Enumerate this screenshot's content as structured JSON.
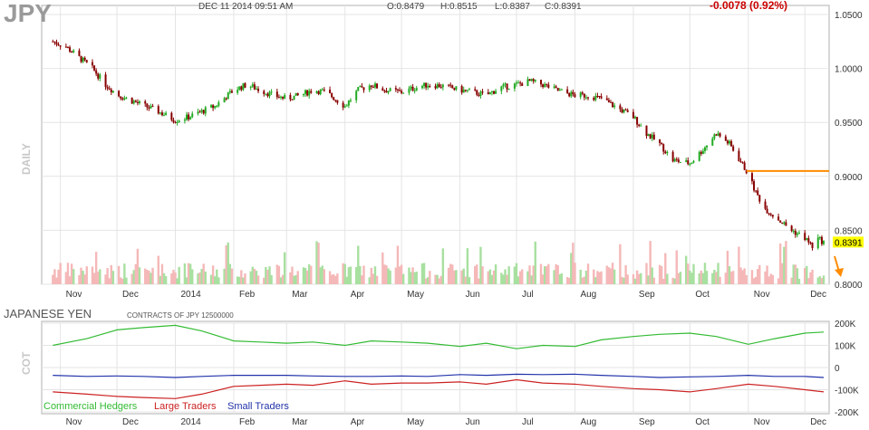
{
  "header": {
    "symbol": "JPY",
    "datetime": "DEC 11 2014 09:51 AM",
    "open": "O:0.8479",
    "high": "H:0.8515",
    "low": "L:0.8387",
    "close": "C:0.8391",
    "change": "-0.0078 (0.92%)"
  },
  "price_panel": {
    "side_label": "DAILY",
    "last_price_label": "0.8391",
    "y_ticks": [
      "1.0500",
      "1.0000",
      "0.9500",
      "0.9000",
      "0.8500",
      "0.8000"
    ]
  },
  "month_labels": [
    "Nov",
    "Dec",
    "2014",
    "Feb",
    "Mar",
    "Apr",
    "May",
    "Jun",
    "Jul",
    "Aug",
    "Sep",
    "Oct",
    "Nov",
    "Dec"
  ],
  "cot_panel": {
    "title": "JAPANESE YEN",
    "subtitle": "CONTRACTS OF JPY 12500000",
    "side_label": "COT",
    "y_ticks": [
      "200K",
      "100K",
      "0",
      "-100K",
      "-200K"
    ],
    "legend": [
      {
        "name": "Commercial Hedgers",
        "color": "#33bb33"
      },
      {
        "name": "Large Traders",
        "color": "#cc2222"
      },
      {
        "name": "Small Traders",
        "color": "#2233aa"
      }
    ]
  },
  "colors": {
    "up_candle": "#22aa22",
    "down_candle": "#880000",
    "volume_up": "#a8e0a0",
    "volume_down": "#f5b8b8",
    "resistance_line": "#ff8c00",
    "last_price_bg": "#ffff00",
    "down_arrow": "#ff8c00",
    "change_text": "#cc0000",
    "grid": "#e4e4e4"
  },
  "chart_data": [
    {
      "type": "candlestick",
      "title": "JPY",
      "ylabel": "DAILY",
      "ylim": [
        0.8,
        1.05
      ],
      "grid": true,
      "x": [
        "2013-10-28",
        "2013-11-04",
        "2013-11-11",
        "2013-11-18",
        "2013-11-25",
        "2013-12-02",
        "2013-12-09",
        "2013-12-16",
        "2013-12-23",
        "2014-01-01",
        "2014-01-08",
        "2014-01-15",
        "2014-01-22",
        "2014-02-01",
        "2014-02-08",
        "2014-02-15",
        "2014-02-22",
        "2014-03-01",
        "2014-03-08",
        "2014-03-15",
        "2014-03-22",
        "2014-04-01",
        "2014-04-08",
        "2014-04-15",
        "2014-04-22",
        "2014-05-01",
        "2014-05-08",
        "2014-05-15",
        "2014-05-22",
        "2014-06-01",
        "2014-06-08",
        "2014-06-15",
        "2014-06-22",
        "2014-07-01",
        "2014-07-08",
        "2014-07-15",
        "2014-07-22",
        "2014-08-01",
        "2014-08-08",
        "2014-08-15",
        "2014-08-22",
        "2014-09-01",
        "2014-09-08",
        "2014-09-15",
        "2014-09-22",
        "2014-10-01",
        "2014-10-08",
        "2014-10-15",
        "2014-10-22",
        "2014-10-31",
        "2014-11-05",
        "2014-11-10",
        "2014-11-17",
        "2014-11-24",
        "2014-12-01",
        "2014-12-05",
        "2014-12-08",
        "2014-12-11"
      ],
      "close": [
        1.025,
        1.02,
        1.01,
        1.0,
        0.985,
        0.975,
        0.97,
        0.965,
        0.96,
        0.952,
        0.955,
        0.96,
        0.965,
        0.98,
        0.985,
        0.98,
        0.975,
        0.972,
        0.975,
        0.98,
        0.978,
        0.965,
        0.98,
        0.985,
        0.98,
        0.978,
        0.982,
        0.985,
        0.984,
        0.98,
        0.978,
        0.975,
        0.982,
        0.985,
        0.988,
        0.985,
        0.98,
        0.975,
        0.975,
        0.972,
        0.965,
        0.955,
        0.94,
        0.93,
        0.915,
        0.912,
        0.925,
        0.94,
        0.93,
        0.905,
        0.885,
        0.87,
        0.86,
        0.85,
        0.843,
        0.835,
        0.842,
        0.8391
      ],
      "annotations": [
        {
          "type": "horizontal_line",
          "y": 0.905,
          "from": "2014-10-31",
          "to": "2014-12-11"
        },
        {
          "type": "last_price",
          "y": 0.8391
        }
      ],
      "x_tick_labels": [
        "Nov",
        "Dec",
        "2014",
        "Feb",
        "Mar",
        "Apr",
        "May",
        "Jun",
        "Jul",
        "Aug",
        "Sep",
        "Oct",
        "Nov",
        "Dec"
      ]
    },
    {
      "type": "line",
      "title": "JAPANESE YEN",
      "subtitle": "CONTRACTS OF JPY 12500000",
      "ylabel": "COT",
      "ylim": [
        -200000,
        200000
      ],
      "x": [
        "2013-10-28",
        "2013-11-15",
        "2013-12-01",
        "2013-12-15",
        "2014-01-01",
        "2014-01-15",
        "2014-02-01",
        "2014-02-15",
        "2014-03-01",
        "2014-03-15",
        "2014-04-01",
        "2014-04-15",
        "2014-05-01",
        "2014-05-15",
        "2014-06-01",
        "2014-06-15",
        "2014-07-01",
        "2014-07-15",
        "2014-08-01",
        "2014-08-15",
        "2014-09-01",
        "2014-09-15",
        "2014-10-01",
        "2014-10-15",
        "2014-11-01",
        "2014-11-15",
        "2014-12-01",
        "2014-12-11"
      ],
      "series": [
        {
          "name": "Commercial Hedgers",
          "values": [
            100000,
            130000,
            170000,
            180000,
            190000,
            165000,
            120000,
            115000,
            110000,
            115000,
            100000,
            120000,
            115000,
            110000,
            95000,
            110000,
            85000,
            100000,
            95000,
            125000,
            140000,
            150000,
            155000,
            140000,
            105000,
            130000,
            155000,
            160000
          ]
        },
        {
          "name": "Large Traders",
          "values": [
            -110000,
            -120000,
            -130000,
            -135000,
            -140000,
            -120000,
            -85000,
            -80000,
            -75000,
            -80000,
            -60000,
            -75000,
            -70000,
            -70000,
            -65000,
            -75000,
            -55000,
            -70000,
            -75000,
            -85000,
            -95000,
            -100000,
            -110000,
            -95000,
            -75000,
            -85000,
            -100000,
            -110000
          ]
        },
        {
          "name": "Small Traders",
          "values": [
            -35000,
            -40000,
            -38000,
            -40000,
            -45000,
            -40000,
            -35000,
            -35000,
            -35000,
            -38000,
            -40000,
            -40000,
            -38000,
            -40000,
            -32000,
            -35000,
            -30000,
            -32000,
            -30000,
            -35000,
            -40000,
            -45000,
            -42000,
            -40000,
            -35000,
            -40000,
            -40000,
            -45000
          ]
        }
      ],
      "x_tick_labels": [
        "Nov",
        "Dec",
        "2014",
        "Feb",
        "Mar",
        "Apr",
        "May",
        "Jun",
        "Jul",
        "Aug",
        "Sep",
        "Oct",
        "Nov",
        "Dec"
      ]
    }
  ]
}
